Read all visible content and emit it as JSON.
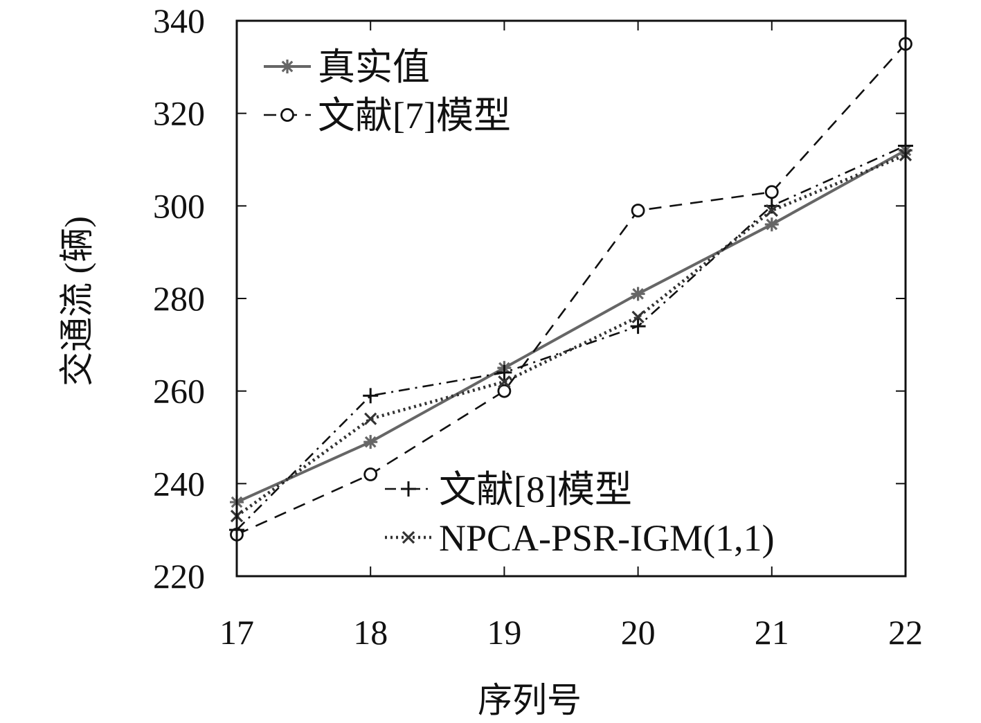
{
  "chart_data": {
    "type": "line",
    "title": "",
    "xlabel": "序列号",
    "ylabel": "交通流 (辆)",
    "x": [
      17,
      18,
      19,
      20,
      21,
      22
    ],
    "xlim": [
      17,
      22
    ],
    "ylim": [
      220,
      340
    ],
    "xticks": [
      "17",
      "18",
      "19",
      "20",
      "21",
      "22"
    ],
    "yticks": [
      "220",
      "240",
      "260",
      "280",
      "300",
      "320",
      "340"
    ],
    "grid": false,
    "legend_placement": "split: top-left and bottom-right",
    "series": [
      {
        "name": "真实值",
        "values": [
          236,
          249,
          265,
          281,
          296,
          312
        ],
        "color": "#666666",
        "style": "solid",
        "marker": "asterisk"
      },
      {
        "name": "文献[7]模型",
        "values": [
          229,
          242,
          260,
          299,
          303,
          335
        ],
        "color": "#111111",
        "style": "dashed",
        "marker": "circle"
      },
      {
        "name": "文献[8]模型",
        "values": [
          230,
          259,
          264,
          274,
          300,
          313
        ],
        "color": "#111111",
        "style": "dashdot",
        "marker": "plus"
      },
      {
        "name": "NPCA-PSR-IGM(1,1)",
        "values": [
          233,
          254,
          262,
          276,
          299,
          311
        ],
        "color": "#333333",
        "style": "dotted",
        "marker": "x"
      }
    ]
  }
}
